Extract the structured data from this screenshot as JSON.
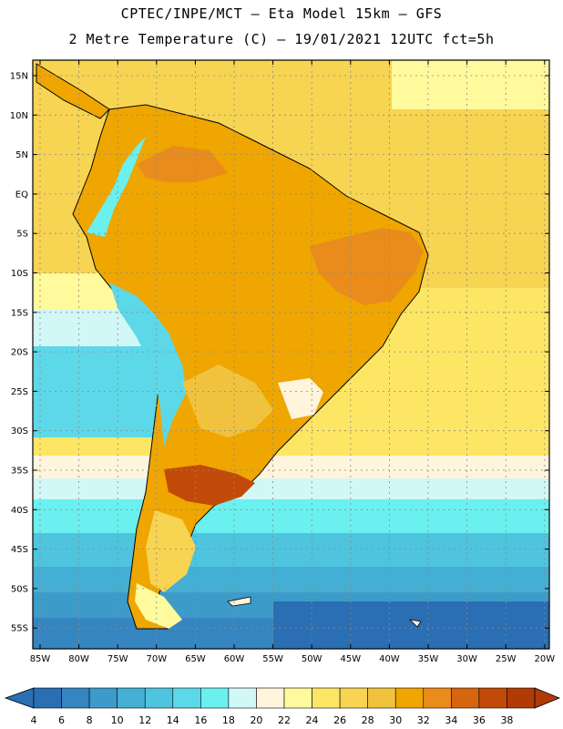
{
  "header": {
    "line1": "CPTEC/INPE/MCT –  Eta Model 15km – GFS",
    "line2": "2 Metre Temperature (C) – 19/01/2021 12UTC fct=5h"
  },
  "map": {
    "lat_labels": [
      "15N",
      "10N",
      "5N",
      "EQ",
      "5S",
      "10S",
      "15S",
      "20S",
      "25S",
      "30S",
      "35S",
      "40S",
      "45S",
      "50S",
      "55S"
    ],
    "lon_labels": [
      "85W",
      "80W",
      "75W",
      "70W",
      "65W",
      "60W",
      "55W",
      "50W",
      "45W",
      "40W",
      "35W",
      "30W",
      "25W",
      "20W"
    ]
  },
  "colorbar": {
    "labels": [
      "4",
      "6",
      "8",
      "10",
      "12",
      "14",
      "16",
      "18",
      "20",
      "22",
      "24",
      "26",
      "28",
      "30",
      "32",
      "34",
      "36",
      "38"
    ],
    "colors": [
      "#2a6eb3",
      "#3585c0",
      "#3d9bc9",
      "#43afd4",
      "#4ec4de",
      "#5dd8e8",
      "#6bf0f0",
      "#d2f7f7",
      "#fff4dc",
      "#fffa9c",
      "#fde664",
      "#f7d452",
      "#f0c23e",
      "#efa600",
      "#ea8c1c",
      "#d5650f",
      "#c24a08",
      "#b03b05"
    ]
  }
}
